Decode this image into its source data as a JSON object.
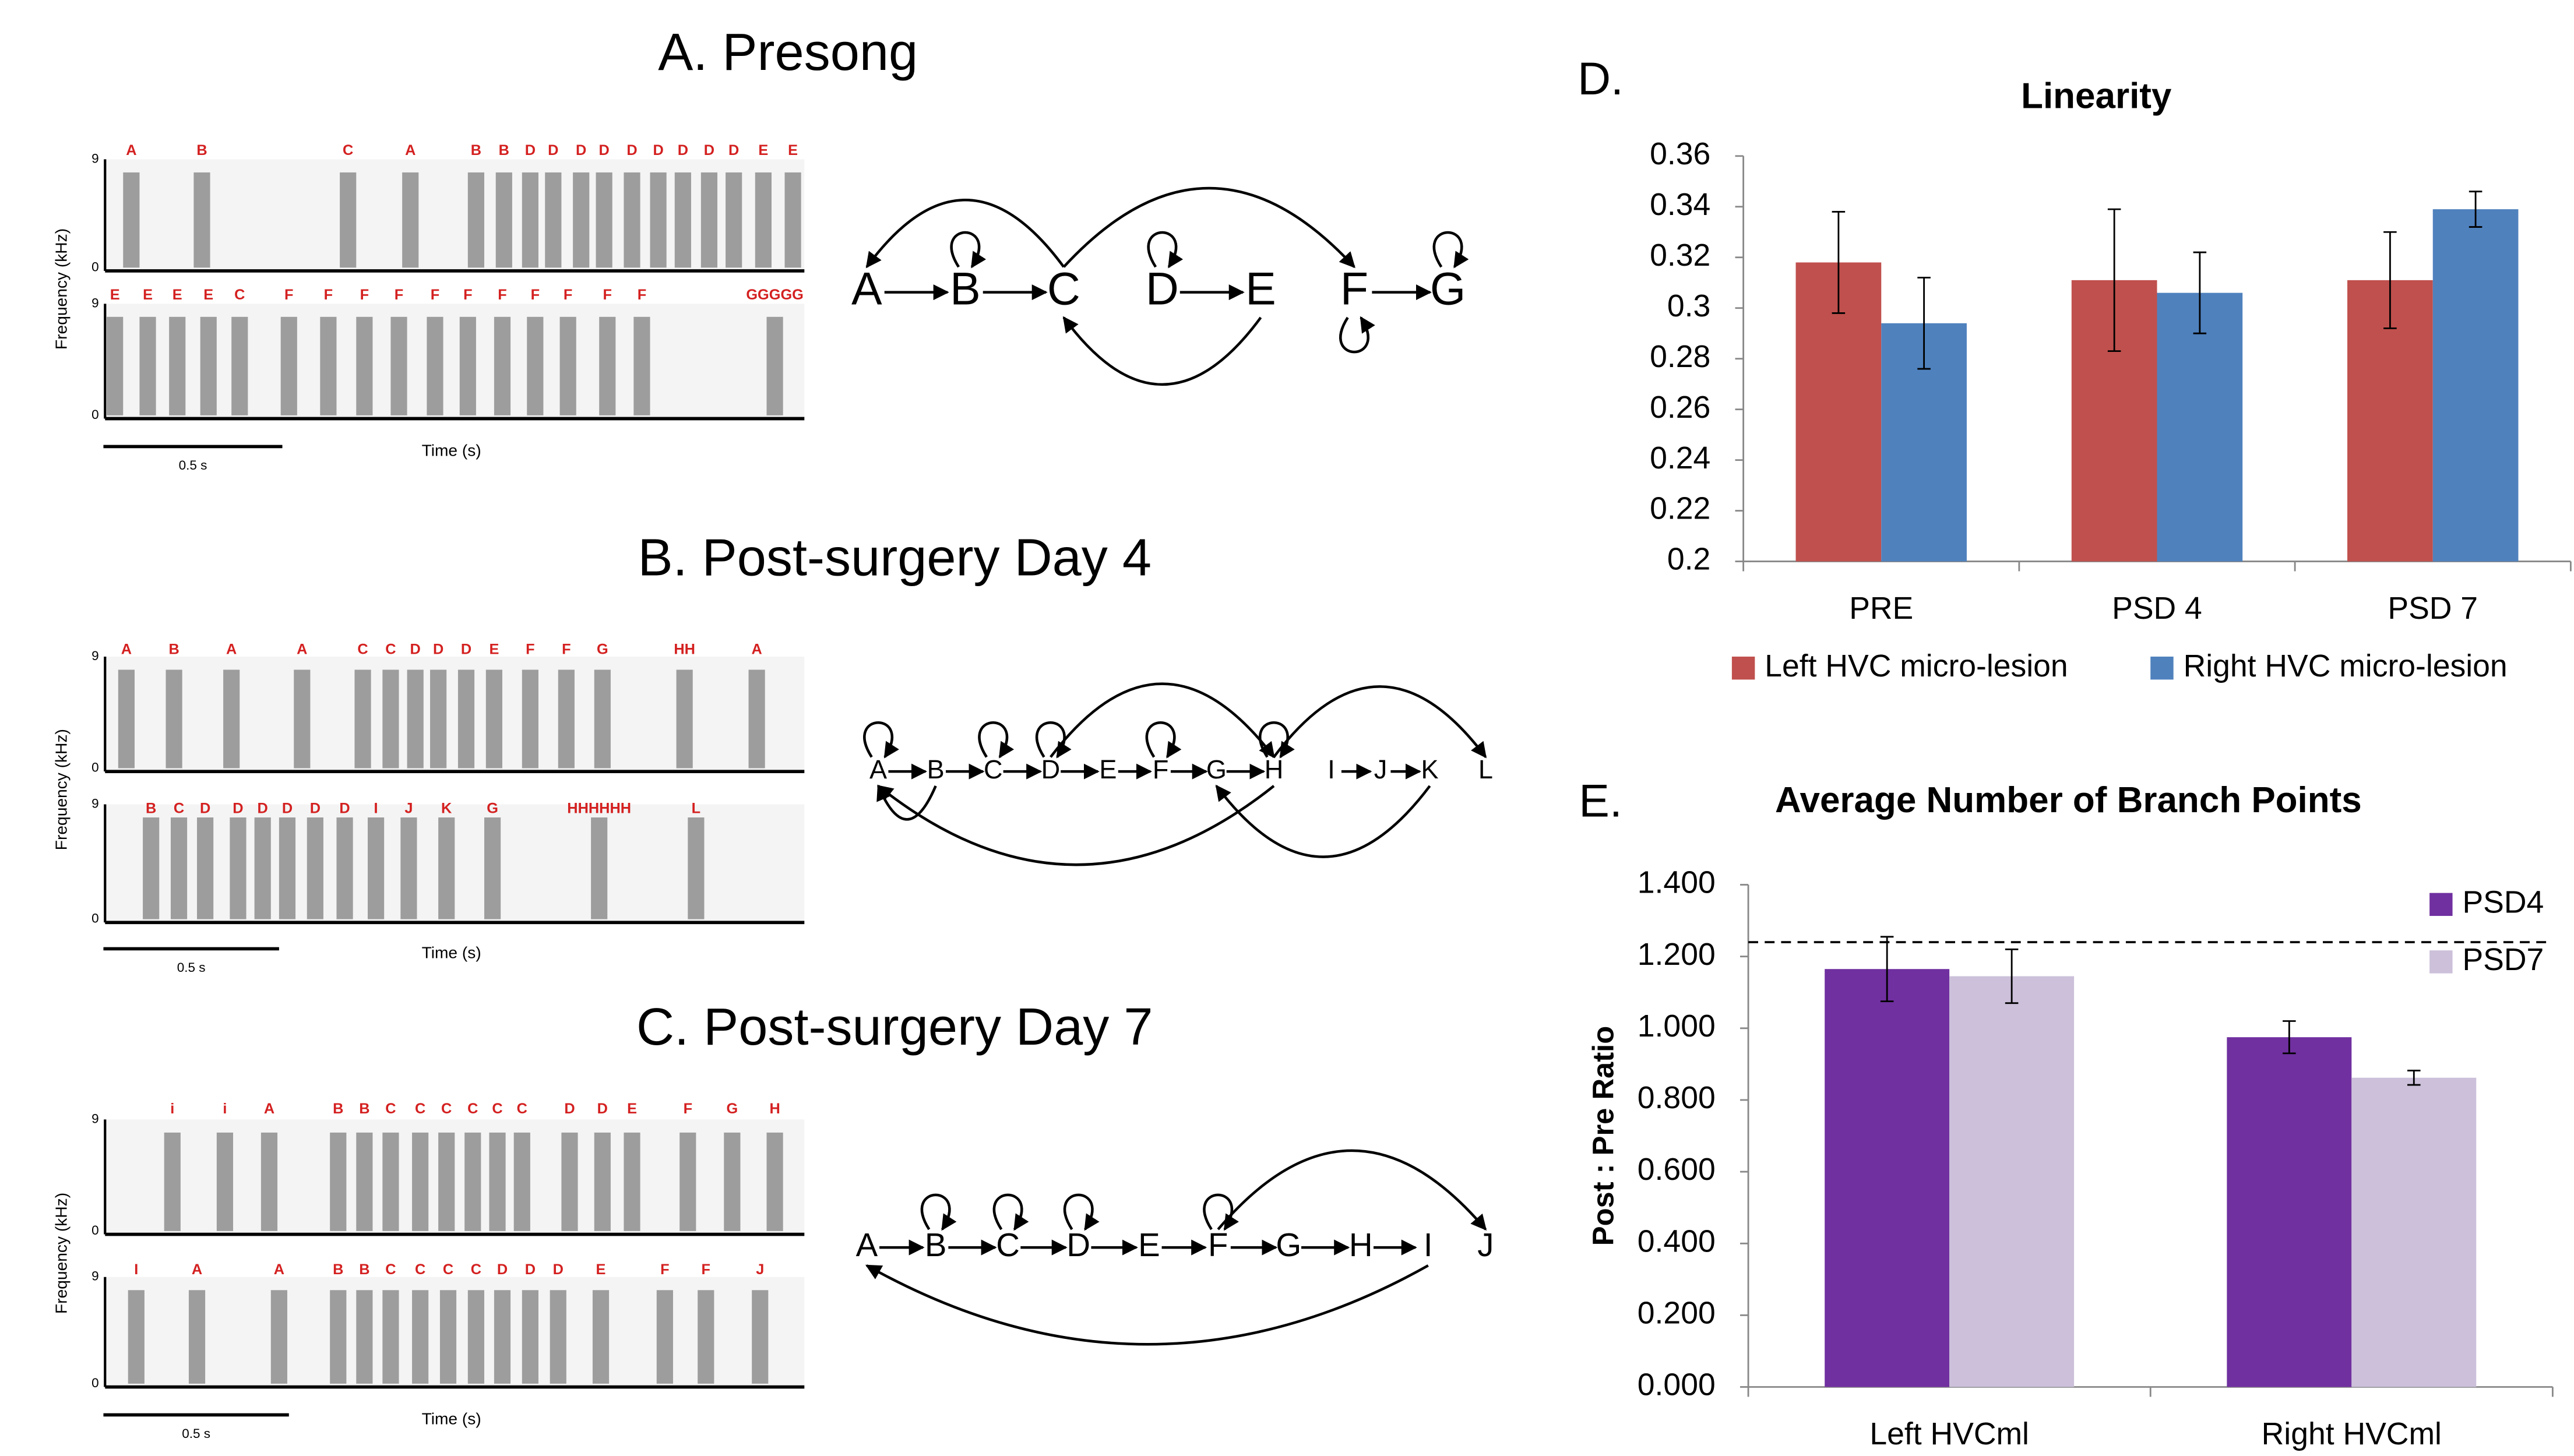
{
  "panels": [
    {
      "title": "A. Presong",
      "rows": [
        [
          "A",
          "B",
          "C",
          "A",
          "B",
          "B",
          "D",
          "D",
          "D",
          "D",
          "D",
          "D",
          "D",
          "D",
          "D",
          "E",
          "E"
        ],
        [
          "E",
          "E",
          "E",
          "E",
          "C",
          "F",
          "F",
          "F",
          "F",
          "F",
          "F",
          "F",
          "F",
          "F",
          "F",
          "F",
          "GGGGG"
        ]
      ],
      "freq_label": "Frequency (kHz)",
      "freq_ticks": [
        "9",
        "0"
      ],
      "scale_label": "0.5 s",
      "time_label": "Time (s)",
      "nodes": [
        "A",
        "B",
        "C",
        "D",
        "E",
        "F",
        "G"
      ]
    },
    {
      "title": "B. Post-surgery Day 4",
      "rows": [
        [
          "A",
          "B",
          "A",
          "A",
          "C",
          "C",
          "D",
          "D",
          "D",
          "E",
          "F",
          "F",
          "G",
          "HH",
          "A"
        ],
        [
          "B",
          "C",
          "D",
          "D",
          "D",
          "D",
          "D",
          "D",
          "I",
          "J",
          "K",
          "G",
          "HHHHHH",
          "L"
        ]
      ],
      "freq_label": "Frequency (kHz)",
      "freq_ticks": [
        "9",
        "0"
      ],
      "scale_label": "0.5 s",
      "time_label": "Time (s)",
      "nodes": [
        "A",
        "B",
        "C",
        "D",
        "E",
        "F",
        "G",
        "H",
        "I",
        "J",
        "K",
        "L"
      ]
    },
    {
      "title": "C. Post-surgery Day 7",
      "rows": [
        [
          "i",
          "i",
          "A",
          "B",
          "B",
          "C",
          "C",
          "C",
          "C",
          "C",
          "C",
          "D",
          "D",
          "E",
          "F",
          "G",
          "H"
        ],
        [
          "I",
          "A",
          "A",
          "B",
          "B",
          "C",
          "C",
          "C",
          "C",
          "D",
          "D",
          "D",
          "E",
          "F",
          "F",
          "J"
        ]
      ],
      "freq_label": "Frequency (kHz)",
      "freq_ticks": [
        "9",
        "0"
      ],
      "scale_label": "0.5 s",
      "time_label": "Time (s)",
      "nodes": [
        "A",
        "B",
        "C",
        "D",
        "E",
        "F",
        "G",
        "H",
        "I",
        "J"
      ]
    }
  ],
  "chart_data": [
    {
      "type": "bar",
      "label": "D.",
      "title": "Linearity",
      "categories": [
        "PRE",
        "PSD 4",
        "PSD 7"
      ],
      "series": [
        {
          "name": "Left HVC micro-lesion",
          "color": "#c0504d",
          "values": [
            0.318,
            0.311,
            0.311
          ],
          "errors": [
            0.02,
            0.028,
            0.019
          ]
        },
        {
          "name": "Right HVC micro-lesion",
          "color": "#4f81bd",
          "values": [
            0.294,
            0.306,
            0.339
          ],
          "errors": [
            0.018,
            0.016,
            0.007
          ]
        }
      ],
      "ylim": [
        0.2,
        0.36
      ],
      "yticks": [
        0.2,
        0.22,
        0.24,
        0.26,
        0.28,
        0.3,
        0.32,
        0.34,
        0.36
      ],
      "legend": "bottom"
    },
    {
      "type": "bar",
      "label": "E.",
      "title": "Average Number of Branch Points",
      "y_label": "Post : Pre Ratio",
      "categories": [
        "Left HVCml",
        "Right HVCml"
      ],
      "series": [
        {
          "name": "PSD4",
          "color": "#7030a0",
          "values": [
            1.165,
            0.975
          ],
          "errors": [
            0.09,
            0.045
          ]
        },
        {
          "name": "PSD7",
          "color": "#ccc0da",
          "values": [
            1.145,
            0.862
          ],
          "errors": [
            0.075,
            0.02
          ]
        }
      ],
      "ylim": [
        0,
        1.4
      ],
      "yticks": [
        {
          "value": 0,
          "label": "0.000"
        },
        {
          "value": 0.2,
          "label": "0.200"
        },
        {
          "value": 0.4,
          "label": "0.400"
        },
        {
          "value": 0.6,
          "label": "0.600"
        },
        {
          "value": 0.8,
          "label": "0.800"
        },
        {
          "value": 1.0,
          "label": "1.000"
        },
        {
          "value": 1.2,
          "label": "1.200"
        },
        {
          "value": 1.4,
          "label": "1.400"
        }
      ],
      "reference_line": 1.24,
      "legend": "top-right"
    }
  ]
}
